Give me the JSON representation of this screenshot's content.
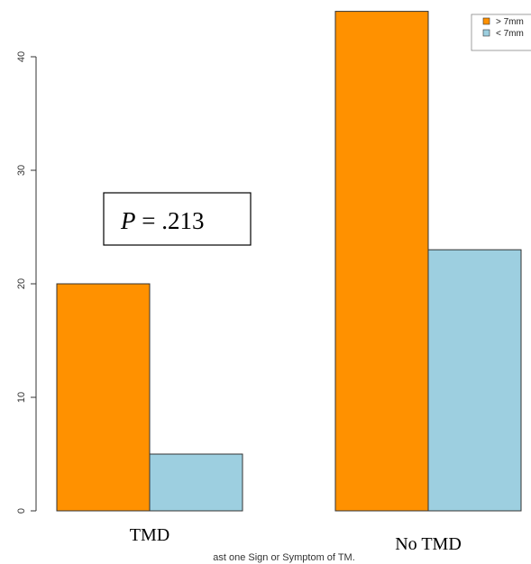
{
  "chart_data": {
    "type": "bar",
    "categories": [
      "TMD",
      "No TMD"
    ],
    "series": [
      {
        "name": "> 7mm",
        "values": [
          20,
          44
        ],
        "color": "#FF9100"
      },
      {
        "name": "< 7mm",
        "values": [
          5,
          23
        ],
        "color": "#9DCFE0"
      }
    ],
    "ylim": [
      0,
      44
    ],
    "yticks": [
      0,
      10,
      20,
      30,
      40
    ],
    "xlabel": "ast one Sign or Symptom of TM.",
    "ylabel": "",
    "annotation": {
      "p_label": "P",
      "p_value": " = .213"
    },
    "legend_placement": "top-right",
    "grid": false
  }
}
